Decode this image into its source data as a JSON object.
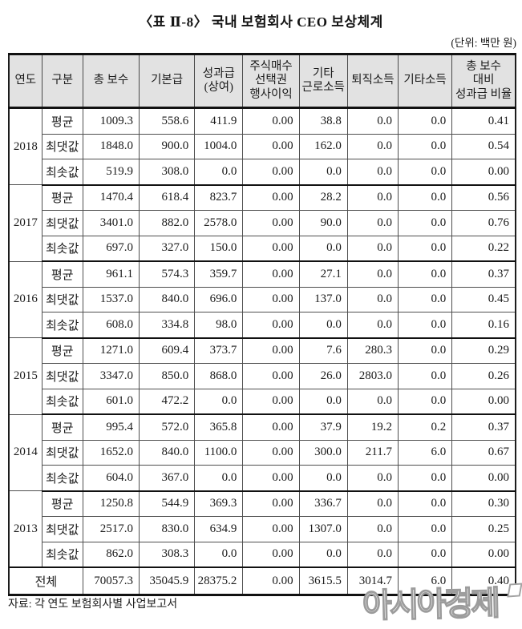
{
  "title": "〈표 Ⅱ-8〉 국내 보험회사 CEO 보상체계",
  "unit_label": "(단위: 백만 원)",
  "source_note": "자료: 각 연도 보험회사별 사업보고서",
  "watermark_text": "아시아경제",
  "colors": {
    "header_bg": "#e2e2e2",
    "border_dark": "#111111",
    "text": "#1b1b1b",
    "watermark_outline": "#9c9c9c"
  },
  "chart_data": {
    "type": "table",
    "title": "〈표 Ⅱ-8〉 국내 보험회사 CEO 보상체계",
    "unit": "백만 원",
    "columns": [
      "연도",
      "구분",
      "총 보수",
      "기본급",
      "성과급(상여)",
      "주식매수선택권 행사이익",
      "기타 근로소득",
      "퇴직소득",
      "기타소득",
      "총 보수 대비 성과급 비율"
    ],
    "headers": [
      "연도",
      "구분",
      "총 보수",
      "기본급",
      "성과급\n(상여)",
      "주식매수\n선택권\n행사이익",
      "기타\n근로소득",
      "퇴직소득",
      "기타소득",
      "총 보수\n대비\n성과급 비율"
    ],
    "groups": [
      {
        "year": "2018",
        "rows": [
          {
            "label": "평균",
            "values": [
              "1009.3",
              "558.6",
              "411.9",
              "0.00",
              "38.8",
              "0.0",
              "0.0",
              "0.41"
            ]
          },
          {
            "label": "최댓값",
            "values": [
              "1848.0",
              "900.0",
              "1004.0",
              "0.00",
              "162.0",
              "0.0",
              "0.0",
              "0.54"
            ]
          },
          {
            "label": "최솟값",
            "values": [
              "519.9",
              "308.0",
              "0.0",
              "0.00",
              "0.0",
              "0.0",
              "0.0",
              "0.00"
            ]
          }
        ]
      },
      {
        "year": "2017",
        "rows": [
          {
            "label": "평균",
            "values": [
              "1470.4",
              "618.4",
              "823.7",
              "0.00",
              "28.2",
              "0.0",
              "0.0",
              "0.56"
            ]
          },
          {
            "label": "최댓값",
            "values": [
              "3401.0",
              "882.0",
              "2578.0",
              "0.00",
              "90.0",
              "0.0",
              "0.0",
              "0.76"
            ]
          },
          {
            "label": "최솟값",
            "values": [
              "697.0",
              "327.0",
              "150.0",
              "0.00",
              "0.0",
              "0.0",
              "0.0",
              "0.22"
            ]
          }
        ]
      },
      {
        "year": "2016",
        "rows": [
          {
            "label": "평균",
            "values": [
              "961.1",
              "574.3",
              "359.7",
              "0.00",
              "27.1",
              "0.0",
              "0.0",
              "0.37"
            ]
          },
          {
            "label": "최댓값",
            "values": [
              "1537.0",
              "840.0",
              "696.0",
              "0.00",
              "137.0",
              "0.0",
              "0.0",
              "0.45"
            ]
          },
          {
            "label": "최솟값",
            "values": [
              "608.0",
              "334.8",
              "98.0",
              "0.00",
              "0.0",
              "0.0",
              "0.0",
              "0.16"
            ]
          }
        ]
      },
      {
        "year": "2015",
        "rows": [
          {
            "label": "평균",
            "values": [
              "1271.0",
              "609.4",
              "373.7",
              "0.00",
              "7.6",
              "280.3",
              "0.0",
              "0.29"
            ]
          },
          {
            "label": "최댓값",
            "values": [
              "3347.0",
              "850.0",
              "868.0",
              "0.00",
              "26.0",
              "2803.0",
              "0.0",
              "0.26"
            ]
          },
          {
            "label": "최솟값",
            "values": [
              "601.0",
              "472.2",
              "0.0",
              "0.00",
              "0.0",
              "0.0",
              "0.0",
              "0.00"
            ]
          }
        ]
      },
      {
        "year": "2014",
        "rows": [
          {
            "label": "평균",
            "values": [
              "995.4",
              "572.0",
              "365.8",
              "0.00",
              "37.9",
              "19.2",
              "0.2",
              "0.37"
            ]
          },
          {
            "label": "최댓값",
            "values": [
              "1652.0",
              "840.0",
              "1100.0",
              "0.00",
              "300.0",
              "211.7",
              "6.0",
              "0.67"
            ]
          },
          {
            "label": "최솟값",
            "values": [
              "604.0",
              "367.0",
              "0.0",
              "0.00",
              "0.0",
              "0.0",
              "0.0",
              "0.00"
            ]
          }
        ]
      },
      {
        "year": "2013",
        "rows": [
          {
            "label": "평균",
            "values": [
              "1250.8",
              "544.9",
              "369.3",
              "0.00",
              "336.7",
              "0.0",
              "0.0",
              "0.30"
            ]
          },
          {
            "label": "최댓값",
            "values": [
              "2517.0",
              "830.0",
              "634.9",
              "0.00",
              "1307.0",
              "0.0",
              "0.0",
              "0.25"
            ]
          },
          {
            "label": "최솟값",
            "values": [
              "862.0",
              "308.3",
              "0.0",
              "0.00",
              "0.0",
              "0.0",
              "0.0",
              "0.00"
            ]
          }
        ]
      }
    ],
    "total": {
      "label": "전체",
      "values": [
        "70057.3",
        "35045.9",
        "28375.2",
        "0.00",
        "3615.5",
        "3014.7",
        "6.0",
        "0.40"
      ]
    }
  }
}
